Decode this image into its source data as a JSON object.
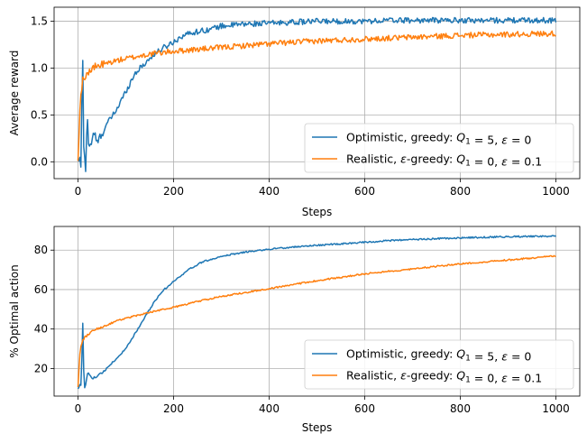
{
  "chart_data": [
    {
      "type": "line",
      "xlabel": "Steps",
      "ylabel": "Average reward",
      "xlim": [
        -50,
        1050
      ],
      "ylim": [
        -0.18,
        1.65
      ],
      "xticks": [
        0,
        200,
        400,
        600,
        800,
        1000
      ],
      "yticks": [
        0.0,
        0.5,
        1.0,
        1.5
      ],
      "ytick_labels": [
        "0.0",
        "0.5",
        "1.0",
        "1.5"
      ],
      "grid": true,
      "legend_position": "lower-right",
      "series": [
        {
          "name": "Optimistic, greedy: Q1 = 5, ε = 0",
          "legend_parts": [
            "Optimistic, greedy: ",
            "Q",
            "1",
            " = 5, ",
            "ε",
            " = 0"
          ],
          "color": "#1f77b4",
          "x": [
            0,
            3,
            6,
            8,
            10,
            12,
            14,
            16,
            18,
            20,
            22,
            25,
            30,
            35,
            40,
            50,
            60,
            80,
            100,
            120,
            140,
            160,
            180,
            200,
            220,
            240,
            260,
            280,
            300,
            350,
            400,
            450,
            500,
            550,
            600,
            650,
            700,
            750,
            800,
            850,
            900,
            950,
            1000
          ],
          "y": [
            0.0,
            0.05,
            -0.05,
            0.6,
            1.06,
            0.2,
            0.05,
            -0.1,
            0.3,
            0.45,
            0.2,
            0.15,
            0.25,
            0.3,
            0.2,
            0.3,
            0.4,
            0.55,
            0.75,
            0.95,
            1.05,
            1.15,
            1.22,
            1.28,
            1.35,
            1.38,
            1.4,
            1.42,
            1.45,
            1.47,
            1.48,
            1.49,
            1.5,
            1.5,
            1.5,
            1.51,
            1.51,
            1.51,
            1.51,
            1.51,
            1.51,
            1.51,
            1.51
          ],
          "noise": 0.03
        },
        {
          "name": "Realistic, ε-greedy: Q1 = 0, ε = 0.1",
          "legend_parts": [
            "Realistic, ",
            "ε",
            "-greedy: ",
            "Q",
            "1",
            " = 0, ",
            "ε",
            " = 0.1"
          ],
          "color": "#ff7f0e",
          "x": [
            0,
            2,
            4,
            6,
            8,
            10,
            15,
            20,
            30,
            40,
            60,
            80,
            100,
            150,
            200,
            250,
            300,
            350,
            400,
            500,
            600,
            700,
            800,
            900,
            1000
          ],
          "y": [
            0.0,
            0.3,
            0.55,
            0.7,
            0.8,
            0.87,
            0.92,
            0.95,
            0.99,
            1.02,
            1.05,
            1.08,
            1.1,
            1.15,
            1.18,
            1.2,
            1.22,
            1.24,
            1.26,
            1.29,
            1.31,
            1.33,
            1.35,
            1.36,
            1.37
          ],
          "noise": 0.03
        }
      ]
    },
    {
      "type": "line",
      "xlabel": "Steps",
      "ylabel": "% Optimal action",
      "xlim": [
        -50,
        1050
      ],
      "ylim": [
        6,
        92
      ],
      "xticks": [
        0,
        200,
        400,
        600,
        800,
        1000
      ],
      "yticks": [
        20,
        40,
        60,
        80
      ],
      "ytick_labels": [
        "20",
        "40",
        "60",
        "80"
      ],
      "grid": true,
      "legend_position": "lower-right",
      "series": [
        {
          "name": "Optimistic, greedy: Q1 = 5, ε = 0",
          "legend_parts": [
            "Optimistic, greedy: ",
            "Q",
            "1",
            " = 5, ",
            "ε",
            " = 0"
          ],
          "color": "#1f77b4",
          "x": [
            0,
            3,
            6,
            9,
            10,
            11,
            13,
            15,
            17,
            20,
            25,
            30,
            40,
            50,
            60,
            80,
            100,
            120,
            140,
            160,
            180,
            200,
            230,
            260,
            300,
            350,
            400,
            450,
            500,
            550,
            600,
            650,
            700,
            750,
            800,
            850,
            900,
            950,
            1000
          ],
          "y": [
            10,
            11,
            12,
            30,
            43,
            25,
            12,
            9,
            14,
            18,
            16,
            15,
            16,
            18,
            20,
            25,
            30,
            38,
            46,
            54,
            60,
            64,
            70,
            74,
            77,
            79,
            80.5,
            81.5,
            82.5,
            83.2,
            84,
            84.8,
            85.3,
            85.8,
            86.2,
            86.5,
            86.8,
            87,
            87
          ],
          "noise": 0.4
        },
        {
          "name": "Realistic, ε-greedy: Q1 = 0, ε = 0.1",
          "legend_parts": [
            "Realistic, ",
            "ε",
            "-greedy: ",
            "Q",
            "1",
            " = 0, ",
            "ε",
            " = 0.1"
          ],
          "color": "#ff7f0e",
          "x": [
            0,
            2,
            4,
            6,
            8,
            10,
            15,
            20,
            30,
            40,
            60,
            80,
            100,
            150,
            200,
            250,
            300,
            350,
            400,
            450,
            500,
            600,
            700,
            800,
            900,
            1000
          ],
          "y": [
            10,
            20,
            27,
            31,
            33,
            34,
            36,
            37,
            39,
            40,
            42,
            44,
            45.5,
            48.5,
            51,
            54,
            56.5,
            58.5,
            60.5,
            62.5,
            64.5,
            68,
            70.5,
            73,
            75,
            77
          ],
          "noise": 0.4
        }
      ]
    }
  ]
}
